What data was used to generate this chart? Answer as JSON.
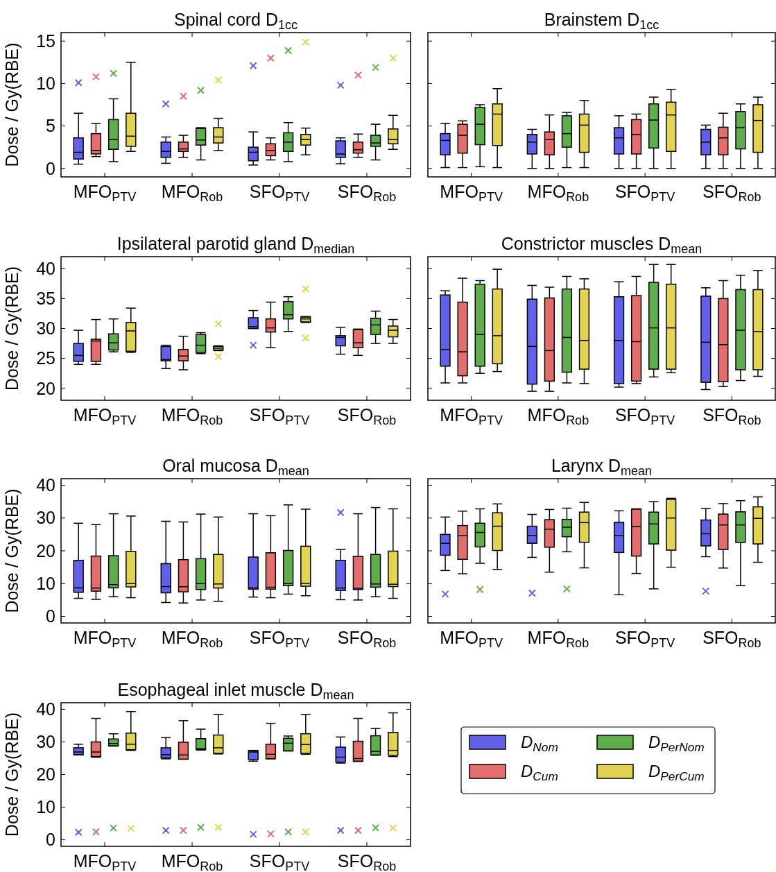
{
  "chart_data": [
    {
      "type": "box",
      "title": "Spinal cord D$_{1cc}$",
      "ylabel": "Dose / Gy(RBE)",
      "categories": [
        "MFO$_{PTV}$",
        "MFO$_{Rob}$",
        "SFO$_{PTV}$",
        "SFO$_{Rob}$"
      ],
      "ylim": [
        -1,
        16
      ],
      "yticks": [
        0,
        5,
        10,
        15
      ],
      "marker": "cross",
      "series": [
        {
          "color": "#6060e8",
          "boxes": [
            {
              "low": 0.5,
              "q1": 1.1,
              "median": 1.9,
              "q3": 3.6,
              "high": 6.5,
              "outliers": [
                10.1
              ]
            },
            {
              "low": 0.6,
              "q1": 1.3,
              "median": 2.0,
              "q3": 3.1,
              "high": 3.7,
              "outliers": [
                7.6
              ]
            },
            {
              "low": 0.4,
              "q1": 0.9,
              "median": 1.9,
              "q3": 2.5,
              "high": 4.3,
              "outliers": [
                12.1
              ]
            },
            {
              "low": 0.55,
              "q1": 1.3,
              "median": 1.7,
              "q3": 3.25,
              "high": 3.6,
              "outliers": [
                9.8
              ]
            }
          ]
        },
        {
          "color": "#e36c6c",
          "boxes": [
            {
              "low": 1.4,
              "q1": 1.7,
              "median": 2.1,
              "q3": 4.1,
              "high": 5.3,
              "outliers": [
                10.8
              ]
            },
            {
              "low": 1.3,
              "q1": 2.0,
              "median": 2.3,
              "q3": 3.1,
              "high": 3.9,
              "outliers": [
                8.5
              ]
            },
            {
              "low": 1.0,
              "q1": 1.5,
              "median": 2.1,
              "q3": 2.9,
              "high": 3.6,
              "outliers": [
                13.0
              ]
            },
            {
              "low": 1.3,
              "q1": 1.8,
              "median": 2.2,
              "q3": 3.1,
              "high": 4.05,
              "outliers": [
                11.0
              ]
            }
          ]
        },
        {
          "color": "#60ad4e",
          "boxes": [
            {
              "low": 0.8,
              "q1": 2.25,
              "median": 3.4,
              "q3": 5.75,
              "high": 8.2,
              "outliers": [
                11.2
              ]
            },
            {
              "low": 1.0,
              "q1": 2.75,
              "median": 3.35,
              "q3": 4.7,
              "high": 4.8,
              "outliers": [
                9.2
              ]
            },
            {
              "low": 0.8,
              "q1": 2.0,
              "median": 3.1,
              "q3": 4.2,
              "high": 5.4,
              "outliers": [
                13.9
              ]
            },
            {
              "low": 1.0,
              "q1": 2.6,
              "median": 3.0,
              "q3": 3.9,
              "high": 5.2,
              "outliers": [
                11.9
              ]
            }
          ]
        },
        {
          "color": "#e3d352",
          "boxes": [
            {
              "low": 2.0,
              "q1": 2.6,
              "median": 3.8,
              "q3": 6.5,
              "high": 12.5
            },
            {
              "low": 2.1,
              "q1": 3.0,
              "median": 3.7,
              "q3": 4.8,
              "high": 5.9,
              "outliers": [
                10.4
              ]
            },
            {
              "low": 1.6,
              "q1": 2.75,
              "median": 3.4,
              "q3": 4.0,
              "high": 4.75,
              "outliers": [
                14.9
              ]
            },
            {
              "low": 2.25,
              "q1": 2.9,
              "median": 3.4,
              "q3": 4.65,
              "high": 6.25,
              "outliers": [
                13.0
              ]
            }
          ]
        }
      ]
    },
    {
      "type": "box",
      "title": "Brainstem D$_{1cc}$",
      "categories": [
        "MFO$_{PTV}$",
        "MFO$_{Rob}$",
        "SFO$_{PTV}$",
        "SFO$_{Rob}$"
      ],
      "ylim": [
        -1,
        16
      ],
      "yticks": [
        {
          "value": 0,
          "label": null
        },
        {
          "value": 5,
          "label": null
        },
        {
          "value": 10,
          "label": null
        },
        {
          "value": 15,
          "label": null
        }
      ],
      "tick_labels": "x",
      "series": [
        {
          "color": "#6060e8",
          "boxes": [
            {
              "low": 0.1,
              "q1": 1.6,
              "median": 3.3,
              "q3": 4.1,
              "high": 5.3
            },
            {
              "low": 0,
              "q1": 1.7,
              "median": 3.1,
              "q3": 4.0,
              "high": 4.6
            },
            {
              "low": 0,
              "q1": 1.7,
              "median": 3.6,
              "q3": 4.8,
              "high": 6.2
            },
            {
              "low": 0,
              "q1": 1.6,
              "median": 3.1,
              "q3": 4.6,
              "high": 5.1
            }
          ]
        },
        {
          "color": "#e36c6c",
          "boxes": [
            {
              "low": 0.1,
              "q1": 1.8,
              "median": 3.9,
              "q3": 5.2,
              "high": 5.6
            },
            {
              "low": 0,
              "q1": 1.6,
              "median": 3.4,
              "q3": 4.3,
              "high": 6.3
            },
            {
              "low": 0,
              "q1": 1.7,
              "median": 4.0,
              "q3": 5.75,
              "high": 6.4
            },
            {
              "low": 0,
              "q1": 1.6,
              "median": 3.6,
              "q3": 4.85,
              "high": 6.5
            }
          ]
        },
        {
          "color": "#60ad4e",
          "boxes": [
            {
              "low": 0.2,
              "q1": 2.8,
              "median": 5.2,
              "q3": 7.2,
              "high": 7.5
            },
            {
              "low": 0.1,
              "q1": 2.5,
              "median": 4.1,
              "q3": 6.2,
              "high": 6.6
            },
            {
              "low": 0,
              "q1": 2.4,
              "median": 5.7,
              "q3": 7.6,
              "high": 8.4
            },
            {
              "low": 0,
              "q1": 2.3,
              "median": 4.8,
              "q3": 6.7,
              "high": 7.6
            }
          ]
        },
        {
          "color": "#e3d352",
          "boxes": [
            {
              "low": 0.1,
              "q1": 2.7,
              "median": 6.4,
              "q3": 7.6,
              "high": 9.4
            },
            {
              "low": 0.1,
              "q1": 1.9,
              "median": 5.1,
              "q3": 6.4,
              "high": 8.0
            },
            {
              "low": 0,
              "q1": 2.0,
              "median": 6.3,
              "q3": 7.8,
              "high": 9.3
            },
            {
              "low": 0,
              "q1": 1.9,
              "median": 5.65,
              "q3": 7.5,
              "high": 8.4
            }
          ]
        }
      ]
    },
    {
      "type": "box",
      "title": "Ipsilateral parotid gland D$_{median}$",
      "ylabel": "Dose / Gy(RBE)",
      "categories": [
        "MFO$_{PTV}$",
        "MFO$_{Rob}$",
        "SFO$_{PTV}$",
        "SFO$_{Rob}$"
      ],
      "ylim": [
        18,
        42
      ],
      "yticks": [
        20,
        25,
        30,
        35,
        40
      ],
      "marker": "cross",
      "series": [
        {
          "color": "#6060e8",
          "boxes": [
            {
              "low": 24.0,
              "q1": 24.5,
              "median": 25.5,
              "q3": 27.5,
              "high": 29.7
            },
            {
              "low": 23.3,
              "q1": 24.6,
              "median": 24.8,
              "q3": 27.0,
              "high": 27.2
            },
            {
              "low": 30.0,
              "q1": 30.0,
              "median": 30.3,
              "q3": 31.8,
              "high": 33.0,
              "outliers": [
                27.2
              ]
            },
            {
              "low": 25.7,
              "q1": 27.1,
              "median": 28.5,
              "q3": 28.8,
              "high": 30.2
            }
          ]
        },
        {
          "color": "#e36c6c",
          "boxes": [
            {
              "low": 24.0,
              "q1": 24.5,
              "median": 27.9,
              "q3": 28.2,
              "high": 31.5
            },
            {
              "low": 23.1,
              "q1": 24.6,
              "median": 25.4,
              "q3": 26.5,
              "high": 28.7
            },
            {
              "low": 26.8,
              "q1": 29.4,
              "median": 30.1,
              "q3": 31.6,
              "high": 34.4
            },
            {
              "low": 25.5,
              "q1": 26.8,
              "median": 27.6,
              "q3": 29.8,
              "high": 29.9
            }
          ]
        },
        {
          "color": "#60ad4e",
          "boxes": [
            {
              "low": 26.1,
              "q1": 26.4,
              "median": 27.6,
              "q3": 29.1,
              "high": 31.6
            },
            {
              "low": 25.8,
              "q1": 26.0,
              "median": 27.2,
              "q3": 29.0,
              "high": 29.3
            },
            {
              "low": 29.5,
              "q1": 31.6,
              "median": 32.3,
              "q3": 34.5,
              "high": 35.3
            },
            {
              "low": 27.5,
              "q1": 29.0,
              "median": 30.6,
              "q3": 31.7,
              "high": 32.9
            }
          ]
        },
        {
          "color": "#e3d352",
          "boxes": [
            {
              "low": 26.0,
              "q1": 26.2,
              "median": 29.6,
              "q3": 31.0,
              "high": 33.4
            },
            {
              "low": 26.3,
              "q1": 26.4,
              "median": 26.7,
              "q3": 27.0,
              "high": 27.1,
              "outliers": [
                30.8,
                25.3
              ]
            },
            {
              "low": 31.0,
              "q1": 31.1,
              "median": 31.6,
              "q3": 31.9,
              "high": 32.0,
              "outliers": [
                36.6,
                28.4
              ]
            },
            {
              "low": 27.5,
              "q1": 28.6,
              "median": 29.7,
              "q3": 30.4,
              "high": 31.5
            }
          ]
        }
      ]
    },
    {
      "type": "box",
      "title": "Constrictor muscles D$_{mean}$",
      "categories": [
        "MFO$_{PTV}$",
        "MFO$_{Rob}$",
        "SFO$_{PTV}$",
        "SFO$_{Rob}$"
      ],
      "ylim": [
        18,
        42
      ],
      "yticks": [
        {
          "value": 20,
          "label": null
        },
        {
          "value": 25,
          "label": null
        },
        {
          "value": 30,
          "label": null
        },
        {
          "value": 35,
          "label": null
        },
        {
          "value": 40,
          "label": null
        }
      ],
      "tick_labels": "x",
      "series": [
        {
          "color": "#6060e8",
          "boxes": [
            {
              "low": 20.9,
              "q1": 23.7,
              "median": 26.5,
              "q3": 35.6,
              "high": 36.3
            },
            {
              "low": 19.5,
              "q1": 20.7,
              "median": 27.0,
              "q3": 34.9,
              "high": 37.2
            },
            {
              "low": 20.2,
              "q1": 20.8,
              "median": 28.0,
              "q3": 35.3,
              "high": 37.8
            },
            {
              "low": 19.8,
              "q1": 21.0,
              "median": 27.7,
              "q3": 35.4,
              "high": 36.8
            }
          ]
        },
        {
          "color": "#e36c6c",
          "boxes": [
            {
              "low": 20.9,
              "q1": 22.1,
              "median": 26.1,
              "q3": 34.4,
              "high": 38.4
            },
            {
              "low": 19.5,
              "q1": 21.2,
              "median": 26.3,
              "q3": 35.1,
              "high": 36.9
            },
            {
              "low": 20.8,
              "q1": 21.2,
              "median": 27.8,
              "q3": 35.5,
              "high": 38.7
            },
            {
              "low": 20.3,
              "q1": 21.1,
              "median": 27.3,
              "q3": 35.0,
              "high": 38.0
            }
          ]
        },
        {
          "color": "#60ad4e",
          "boxes": [
            {
              "low": 22.5,
              "q1": 23.7,
              "median": 29.0,
              "q3": 37.4,
              "high": 38.0
            },
            {
              "low": 20.9,
              "q1": 22.7,
              "median": 28.5,
              "q3": 36.6,
              "high": 38.7
            },
            {
              "low": 21.9,
              "q1": 23.2,
              "median": 30.1,
              "q3": 37.7,
              "high": 40.7
            },
            {
              "low": 21.3,
              "q1": 23.1,
              "median": 29.7,
              "q3": 36.5,
              "high": 38.9
            }
          ]
        },
        {
          "color": "#e3d352",
          "boxes": [
            {
              "low": 22.8,
              "q1": 24.1,
              "median": 28.8,
              "q3": 36.6,
              "high": 39.9
            },
            {
              "low": 20.8,
              "q1": 23.2,
              "median": 28.0,
              "q3": 36.6,
              "high": 38.3
            },
            {
              "low": 22.6,
              "q1": 23.2,
              "median": 30.1,
              "q3": 37.4,
              "high": 40.7
            },
            {
              "low": 22.0,
              "q1": 23.1,
              "median": 29.5,
              "q3": 36.5,
              "high": 39.7
            }
          ]
        }
      ]
    },
    {
      "type": "box",
      "title": "Oral mucosa D$_{mean}$",
      "ylabel": "Dose / Gy(RBE)",
      "categories": [
        "MFO$_{PTV}$",
        "MFO$_{Rob}$",
        "SFO$_{PTV}$",
        "SFO$_{Rob}$"
      ],
      "ylim": [
        -2,
        42
      ],
      "yticks": [
        0,
        10,
        20,
        30,
        40
      ],
      "marker": "cross",
      "series": [
        {
          "color": "#6060e8",
          "boxes": [
            {
              "low": 5.5,
              "q1": 7.35,
              "median": 8.7,
              "q3": 17.1,
              "high": 28.4
            },
            {
              "low": 4.25,
              "q1": 7.2,
              "median": 9.1,
              "q3": 16.1,
              "high": 29.0
            },
            {
              "low": 5.9,
              "q1": 8.3,
              "median": 8.7,
              "q3": 18.1,
              "high": 31.3
            },
            {
              "low": 5.1,
              "q1": 7.9,
              "median": 8.65,
              "q3": 17.1,
              "high": 20.4,
              "outliers": [
                31.7
              ]
            }
          ]
        },
        {
          "color": "#e36c6c",
          "boxes": [
            {
              "low": 5.2,
              "q1": 7.7,
              "median": 8.65,
              "q3": 18.4,
              "high": 28.0
            },
            {
              "low": 4.1,
              "q1": 7.5,
              "median": 9.05,
              "q3": 17.3,
              "high": 28.8
            },
            {
              "low": 5.7,
              "q1": 8.3,
              "median": 8.9,
              "q3": 19.4,
              "high": 30.7
            },
            {
              "low": 5.0,
              "q1": 8.2,
              "median": 8.6,
              "q3": 18.3,
              "high": 31.3
            }
          ]
        },
        {
          "color": "#60ad4e",
          "boxes": [
            {
              "low": 6.0,
              "q1": 8.7,
              "median": 9.7,
              "q3": 18.5,
              "high": 31.3
            },
            {
              "low": 5.0,
              "q1": 8.2,
              "median": 10.0,
              "q3": 17.6,
              "high": 31.2
            },
            {
              "low": 6.8,
              "q1": 9.4,
              "median": 10.0,
              "q3": 20.1,
              "high": 34.0
            },
            {
              "low": 6.0,
              "q1": 8.9,
              "median": 9.9,
              "q3": 18.9,
              "high": 33.2
            }
          ]
        },
        {
          "color": "#e3d352",
          "boxes": [
            {
              "low": 5.7,
              "q1": 9.0,
              "median": 10.0,
              "q3": 19.8,
              "high": 30.6
            },
            {
              "low": 4.6,
              "q1": 8.65,
              "median": 9.9,
              "q3": 18.9,
              "high": 30.3
            },
            {
              "low": 6.3,
              "q1": 9.2,
              "median": 10.1,
              "q3": 21.4,
              "high": 32.7
            },
            {
              "low": 5.5,
              "q1": 9.1,
              "median": 9.8,
              "q3": 19.9,
              "high": 32.8
            }
          ]
        }
      ]
    },
    {
      "type": "box",
      "title": "Larynx D$_{mean}$",
      "categories": [
        "MFO$_{PTV}$",
        "MFO$_{Rob}$",
        "SFO$_{PTV}$",
        "SFO$_{Rob}$"
      ],
      "ylim": [
        -2,
        42
      ],
      "yticks": [
        {
          "value": 0,
          "label": null
        },
        {
          "value": 10,
          "label": null
        },
        {
          "value": 20,
          "label": null
        },
        {
          "value": 30,
          "label": null
        },
        {
          "value": 40,
          "label": null
        }
      ],
      "tick_labels": "x",
      "marker": "cross",
      "series": [
        {
          "color": "#6060e8",
          "boxes": [
            {
              "low": 14.0,
              "q1": 18.65,
              "median": 22.3,
              "q3": 25.0,
              "high": 30.3,
              "outliers": [
                6.8
              ]
            },
            {
              "low": 18.0,
              "q1": 22.3,
              "median": 24.7,
              "q3": 27.5,
              "high": 31.1,
              "outliers": [
                7.1
              ]
            },
            {
              "low": 6.6,
              "q1": 19.5,
              "median": 24.6,
              "q3": 28.7,
              "high": 32.2
            },
            {
              "low": 18.2,
              "q1": 21.5,
              "median": 25.2,
              "q3": 29.4,
              "high": 32.9,
              "outliers": [
                7.7
              ]
            }
          ]
        },
        {
          "color": "#e36c6c",
          "boxes": [
            {
              "low": 13.0,
              "q1": 17.4,
              "median": 24.6,
              "q3": 27.7,
              "high": 32.1
            },
            {
              "low": 13.5,
              "q1": 21.1,
              "median": 26.6,
              "q3": 29.5,
              "high": 32.6
            },
            {
              "low": 13.1,
              "q1": 18.4,
              "median": 27.4,
              "q3": 32.7,
              "high": 32.8
            },
            {
              "low": 14.75,
              "q1": 20.4,
              "median": 27.9,
              "q3": 31.2,
              "high": 34.4
            }
          ]
        },
        {
          "color": "#60ad4e",
          "boxes": [
            {
              "low": 16.2,
              "q1": 21.2,
              "median": 25.6,
              "q3": 28.4,
              "high": 32.8,
              "outliers": [
                8.2
              ]
            },
            {
              "low": 19.7,
              "q1": 24.3,
              "median": 27.2,
              "q3": 29.6,
              "high": 33.0,
              "outliers": [
                8.4
              ]
            },
            {
              "low": 8.4,
              "q1": 22.1,
              "median": 28.2,
              "q3": 31.8,
              "high": 35.0
            },
            {
              "low": 9.4,
              "q1": 22.55,
              "median": 27.9,
              "q3": 31.9,
              "high": 35.3
            }
          ]
        },
        {
          "color": "#e3d352",
          "boxes": [
            {
              "low": 14.3,
              "q1": 20.1,
              "median": 27.5,
              "q3": 31.6,
              "high": 34.3
            },
            {
              "low": 14.8,
              "q1": 22.6,
              "median": 28.6,
              "q3": 31.8,
              "high": 34.75
            },
            {
              "low": 15.0,
              "q1": 20.2,
              "median": 30.0,
              "q3": 35.7,
              "high": 36.0
            },
            {
              "low": 16.5,
              "q1": 22.1,
              "median": 29.9,
              "q3": 33.4,
              "high": 36.45
            }
          ]
        }
      ]
    },
    {
      "type": "box",
      "title": "Esophageal inlet muscle D$_{mean}$",
      "ylabel": "Dose / Gy(RBE)",
      "categories": [
        "MFO$_{PTV}$",
        "MFO$_{Rob}$",
        "SFO$_{PTV}$",
        "SFO$_{Rob}$"
      ],
      "ylim": [
        -2,
        42
      ],
      "yticks": [
        0,
        10,
        20,
        30,
        40
      ],
      "marker": "cross",
      "legend": "right",
      "series": [
        {
          "name": "D$_{Nom}$",
          "color": "#6060e8",
          "boxes": [
            {
              "low": 26.0,
              "q1": 26.1,
              "median": 26.9,
              "q3": 28.2,
              "high": 29.3,
              "outliers": [
                2.3
              ]
            },
            {
              "low": 24.8,
              "q1": 25.1,
              "median": 26.1,
              "q3": 28.2,
              "high": 31.3,
              "outliers": [
                2.9
              ]
            },
            {
              "low": 24.1,
              "q1": 24.6,
              "median": 26.9,
              "q3": 27.3,
              "high": 27.4,
              "outliers": [
                1.7
              ]
            },
            {
              "low": 23.5,
              "q1": 23.8,
              "median": 25.3,
              "q3": 28.4,
              "high": 31.5,
              "outliers": [
                2.9
              ]
            }
          ]
        },
        {
          "name": "D$_{Cum}$",
          "color": "#e36c6c",
          "boxes": [
            {
              "low": 25.3,
              "q1": 25.5,
              "median": 26.9,
              "q3": 30.0,
              "high": 37.2,
              "outliers": [
                2.4
              ]
            },
            {
              "low": 24.7,
              "q1": 24.7,
              "median": 26.0,
              "q3": 29.9,
              "high": 36.5,
              "outliers": [
                2.9
              ]
            },
            {
              "low": 24.8,
              "q1": 24.9,
              "median": 26.2,
              "q3": 29.3,
              "high": 35.7,
              "outliers": [
                1.8
              ]
            },
            {
              "low": 24.0,
              "q1": 24.1,
              "median": 24.9,
              "q3": 30.2,
              "high": 37.2,
              "outliers": [
                2.9
              ]
            }
          ]
        },
        {
          "name": "D$_{PerNom}$",
          "color": "#60ad4e",
          "boxes": [
            {
              "low": 28.7,
              "q1": 28.8,
              "median": 29.5,
              "q3": 30.9,
              "high": 32.5,
              "outliers": [
                3.6
              ]
            },
            {
              "low": 27.5,
              "q1": 27.7,
              "median": 27.9,
              "q3": 31.0,
              "high": 33.9,
              "outliers": [
                3.8
              ]
            },
            {
              "low": 27.2,
              "q1": 27.3,
              "median": 29.6,
              "q3": 31.1,
              "high": 31.8,
              "outliers": [
                2.4
              ]
            },
            {
              "low": 25.9,
              "q1": 26.0,
              "median": 27.1,
              "q3": 31.9,
              "high": 34.1,
              "outliers": [
                3.7
              ]
            }
          ]
        },
        {
          "name": "D$_{PerCum}$",
          "color": "#e3d352",
          "boxes": [
            {
              "low": 27.4,
              "q1": 27.6,
              "median": 29.3,
              "q3": 32.7,
              "high": 39.3,
              "outliers": [
                3.5
              ]
            },
            {
              "low": 26.3,
              "q1": 26.5,
              "median": 28.2,
              "q3": 32.1,
              "high": 38.4,
              "outliers": [
                3.8
              ]
            },
            {
              "low": 26.2,
              "q1": 26.5,
              "median": 29.2,
              "q3": 32.5,
              "high": 38.4,
              "outliers": [
                2.4
              ]
            },
            {
              "low": 25.5,
              "q1": 25.9,
              "median": 27.4,
              "q3": 32.9,
              "high": 38.9,
              "outliers": [
                3.6
              ]
            }
          ]
        }
      ]
    }
  ]
}
